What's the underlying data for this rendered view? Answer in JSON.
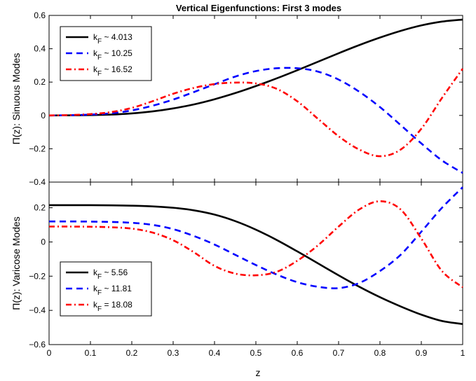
{
  "figure": {
    "title": "Vertical Eigenfunctions: First 3 modes",
    "xlabel": "z"
  },
  "chart_data": [
    {
      "type": "line",
      "title": "Vertical Eigenfunctions: First 3 modes",
      "xlabel": "",
      "ylabel": "Π(z): Sinuous Modes",
      "xlim": [
        0,
        1
      ],
      "ylim": [
        -0.4,
        0.6
      ],
      "xticks": [
        0,
        0.1,
        0.2,
        0.3,
        0.4,
        0.5,
        0.6,
        0.7,
        0.8,
        0.9,
        1
      ],
      "yticks": [
        -0.4,
        -0.2,
        0,
        0.2,
        0.4,
        0.6
      ],
      "ytick_labels": [
        "−0.4",
        "−0.2",
        "0",
        "0.2",
        "0.4",
        "0.6"
      ],
      "grid": false,
      "legend_position": "top-left",
      "x": [
        0,
        0.05,
        0.1,
        0.15,
        0.2,
        0.25,
        0.3,
        0.35,
        0.4,
        0.45,
        0.5,
        0.55,
        0.6,
        0.65,
        0.7,
        0.75,
        0.8,
        0.85,
        0.9,
        0.95,
        1
      ],
      "series": [
        {
          "name": "k",
          "subscript": "F",
          "value": " ~ 4.013",
          "color": "#000000",
          "dash": "solid",
          "values": [
            0,
            0.0005,
            0.002,
            0.005,
            0.012,
            0.024,
            0.042,
            0.066,
            0.097,
            0.134,
            0.176,
            0.222,
            0.271,
            0.322,
            0.373,
            0.422,
            0.467,
            0.507,
            0.54,
            0.563,
            0.575
          ]
        },
        {
          "name": "k",
          "subscript": "F",
          "value": " ~ 10.25",
          "color": "#0000ff",
          "dash": "dashed",
          "values": [
            0,
            0.001,
            0.005,
            0.013,
            0.03,
            0.058,
            0.095,
            0.14,
            0.187,
            0.233,
            0.266,
            0.283,
            0.283,
            0.263,
            0.215,
            0.142,
            0.05,
            -0.058,
            -0.168,
            -0.27,
            -0.345
          ]
        },
        {
          "name": "k",
          "subscript": "F",
          "value": " ~ 16.52",
          "color": "#ff0000",
          "dash": "dashdot",
          "values": [
            0,
            0.002,
            0.008,
            0.02,
            0.045,
            0.085,
            0.13,
            0.165,
            0.188,
            0.197,
            0.192,
            0.16,
            0.085,
            -0.02,
            -0.125,
            -0.205,
            -0.245,
            -0.205,
            -0.08,
            0.105,
            0.28
          ]
        }
      ]
    },
    {
      "type": "line",
      "xlabel": "z",
      "ylabel": "Π(z): Varicose Modes",
      "xlim": [
        0,
        1
      ],
      "ylim": [
        -0.6,
        0.35
      ],
      "xticks": [
        0,
        0.1,
        0.2,
        0.3,
        0.4,
        0.5,
        0.6,
        0.7,
        0.8,
        0.9,
        1
      ],
      "yticks": [
        -0.6,
        -0.4,
        -0.2,
        0,
        0.2
      ],
      "ytick_labels": [
        "−0.6",
        "−0.4",
        "−0.2",
        "0",
        "0.2"
      ],
      "grid": false,
      "legend_position": "bottom-left",
      "x": [
        0,
        0.05,
        0.1,
        0.15,
        0.2,
        0.25,
        0.3,
        0.35,
        0.4,
        0.45,
        0.5,
        0.55,
        0.6,
        0.65,
        0.7,
        0.75,
        0.8,
        0.85,
        0.9,
        0.95,
        1
      ],
      "series": [
        {
          "name": "k",
          "subscript": "F",
          "value": " ~ 5.56",
          "color": "#000000",
          "dash": "solid",
          "values": [
            0.215,
            0.215,
            0.215,
            0.214,
            0.212,
            0.208,
            0.2,
            0.185,
            0.16,
            0.122,
            0.072,
            0.012,
            -0.055,
            -0.125,
            -0.195,
            -0.262,
            -0.323,
            -0.377,
            -0.425,
            -0.462,
            -0.48
          ]
        },
        {
          "name": "k",
          "subscript": "F",
          "value": " ~ 11.81",
          "color": "#0000ff",
          "dash": "dashed",
          "values": [
            0.12,
            0.12,
            0.119,
            0.117,
            0.112,
            0.1,
            0.075,
            0.035,
            -0.015,
            -0.075,
            -0.135,
            -0.19,
            -0.235,
            -0.262,
            -0.27,
            -0.24,
            -0.17,
            -0.075,
            0.06,
            0.2,
            0.32
          ]
        },
        {
          "name": "k",
          "subscript": "F",
          "value": " = 18.08",
          "color": "#ff0000",
          "dash": "dashdot",
          "values": [
            0.09,
            0.09,
            0.089,
            0.086,
            0.078,
            0.055,
            0.01,
            -0.06,
            -0.14,
            -0.185,
            -0.195,
            -0.175,
            -0.11,
            -0.02,
            0.09,
            0.19,
            0.238,
            0.19,
            0.02,
            -0.17,
            -0.265
          ]
        }
      ]
    }
  ]
}
